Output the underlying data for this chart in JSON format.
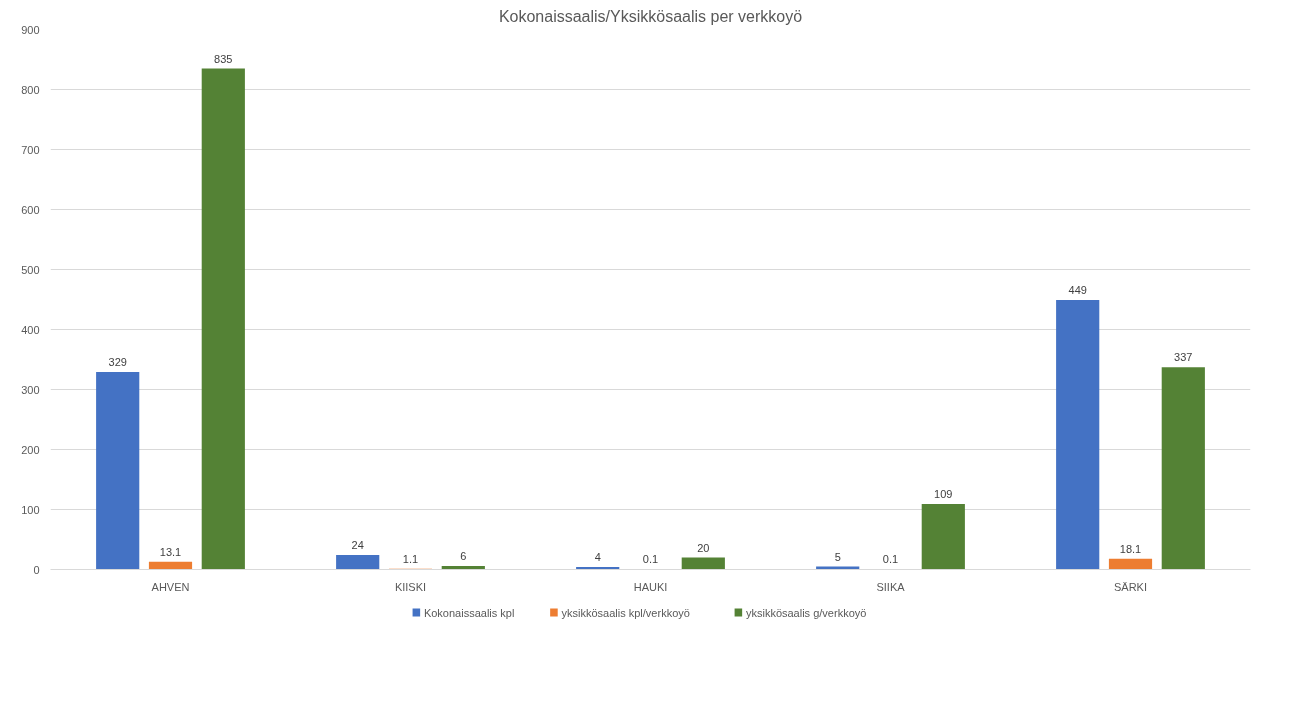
{
  "chart_data": {
    "type": "bar",
    "title": "Kokonaissaalis/Yksikkösaalis per verkkoyö",
    "categories": [
      "AHVEN",
      "KIISKI",
      "HAUKI",
      "SIIKA",
      "SÄRKI"
    ],
    "series": [
      {
        "name": "Kokonaissaalis kpl",
        "color": "#4472c4",
        "values": [
          329,
          24,
          4,
          5,
          449
        ]
      },
      {
        "name": "yksikkösaalis kpl/verkkoyö",
        "color": "#ed7d31",
        "values": [
          13.1,
          1.1,
          0.1,
          0.1,
          18.1
        ]
      },
      {
        "name": "yksikkösaalis g/verkkoyö",
        "color": "#548235",
        "values": [
          835,
          6,
          20,
          109,
          337
        ]
      }
    ],
    "ylim": [
      0,
      900
    ],
    "yticks": [
      0,
      100,
      200,
      300,
      400,
      500,
      600,
      700,
      800,
      900
    ],
    "grid": "y",
    "legend": "bottom",
    "data_labels": true
  }
}
